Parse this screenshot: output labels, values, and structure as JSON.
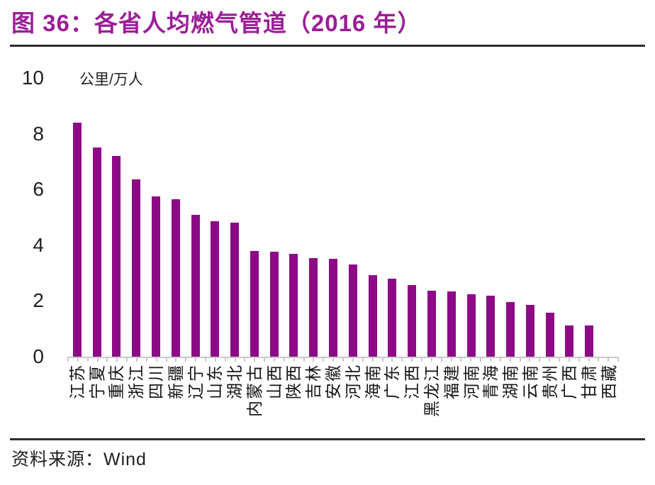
{
  "chart_data": {
    "type": "bar",
    "title": "图 36：各省人均燃气管道（2016 年）",
    "unit_label": "公里/万人",
    "ylabel": "公里/万人",
    "xlabel": "",
    "categories": [
      "江苏",
      "宁夏",
      "重庆",
      "浙江",
      "四川",
      "新疆",
      "辽宁",
      "山东",
      "湖北",
      "内蒙古",
      "山西",
      "陕西",
      "吉林",
      "安徽",
      "河北",
      "海南",
      "广东",
      "江西",
      "黑龙江",
      "福建",
      "河南",
      "青海",
      "湖南",
      "云南",
      "贵州",
      "广西",
      "甘肃",
      "西藏"
    ],
    "values": [
      8.4,
      7.5,
      7.2,
      6.35,
      5.75,
      5.65,
      5.1,
      4.85,
      4.8,
      3.78,
      3.76,
      3.7,
      3.55,
      3.5,
      3.32,
      2.93,
      2.8,
      2.56,
      2.37,
      2.34,
      2.24,
      2.18,
      1.96,
      1.87,
      1.58,
      1.12,
      1.12,
      0
    ],
    "ylim": [
      0,
      10
    ],
    "yticks": [
      0,
      2,
      4,
      6,
      8,
      10
    ],
    "grid": false,
    "legend_position": "none",
    "bar_color": "#8D0A87",
    "title_color": "#9B1E96",
    "axis_color": "#c9c9c9"
  },
  "footer": {
    "source": "资料来源：Wind"
  }
}
